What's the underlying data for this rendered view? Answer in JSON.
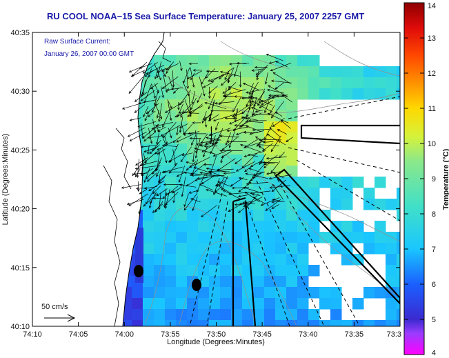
{
  "chart_data": {
    "type": "heatmap",
    "title": "RU COOL  NOAA−15  Sea Surface Temperature:  January 25, 2007 2257 GMT",
    "xlabel": "Longitude (Degrees:Minutes)",
    "ylabel": "Latitude (Degrees:Minutes)",
    "x_ticks": [
      "74:10",
      "74:05",
      "74:00",
      "73:55",
      "73:50",
      "73:45",
      "73:40",
      "73:35",
      "73:3"
    ],
    "y_ticks": [
      "40:35",
      "40:30",
      "40:25",
      "40:20",
      "40:15",
      "40:10"
    ],
    "xlim_minutes_west": [
      10,
      30
    ],
    "ylim": [
      "40:10",
      "40:35"
    ],
    "annotation_lines": [
      "Raw Surface Current:",
      "January 26, 2007 00:00 GMT"
    ],
    "scale_label": "50 cm/s",
    "colorbar": {
      "label": "Temperature (°C)",
      "ticks": [
        "4",
        "5",
        "6",
        "7",
        "8",
        "9",
        "10",
        "11",
        "12",
        "13",
        "14"
      ],
      "range": [
        4,
        14
      ]
    },
    "grid": false,
    "colors": {
      "title": "#1a1aa8",
      "land": "#ffffff",
      "arrows": "#000000",
      "coastline": "#000000",
      "bathymetry": "#909090"
    }
  }
}
